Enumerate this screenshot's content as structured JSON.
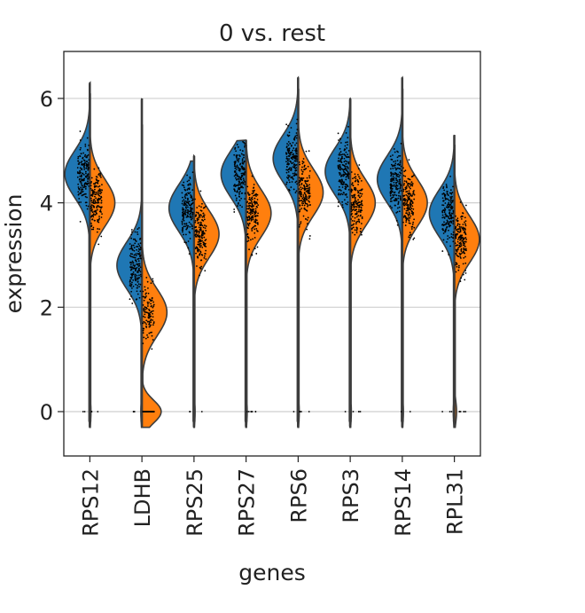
{
  "chart_data": {
    "type": "violin",
    "title": "0 vs. rest",
    "xlabel": "genes",
    "ylabel": "expression",
    "ylim": [
      -0.85,
      6.9
    ],
    "yticks": [
      0,
      2,
      4,
      6
    ],
    "grid": "horizontal",
    "categories": [
      "RPS12",
      "LDHB",
      "RPS25",
      "RPS27",
      "RPS6",
      "RPS3",
      "RPS14",
      "RPL31"
    ],
    "split": true,
    "colors": {
      "group": "#1f77b4",
      "rest": "#ff7f0e",
      "outline": "#3c3c3c",
      "points": "#000000"
    },
    "series": [
      {
        "side": "left",
        "range_max": [
          6.3,
          6.0,
          4.8,
          5.2,
          6.4,
          6.0,
          6.4,
          5.3
        ],
        "modes": [
          4.55,
          2.8,
          3.9,
          4.55,
          4.85,
          4.6,
          4.45,
          3.8
        ],
        "medians": [
          4.5,
          2.6,
          3.9,
          4.5,
          4.8,
          4.6,
          4.4,
          3.8
        ],
        "zero_fraction": [
          0.01,
          0.02,
          0.01,
          0.01,
          0.01,
          0.01,
          0.01,
          0.02
        ]
      },
      {
        "side": "right",
        "range_max": [
          6.1,
          5.5,
          4.9,
          5.1,
          6.2,
          6.0,
          6.2,
          5.1
        ],
        "modes": [
          4.0,
          1.9,
          3.4,
          3.8,
          4.2,
          4.0,
          4.0,
          3.3
        ],
        "medians": [
          3.9,
          1.9,
          3.3,
          3.8,
          4.2,
          4.0,
          3.9,
          3.1
        ],
        "zero_fraction": [
          0.02,
          0.35,
          0.02,
          0.02,
          0.02,
          0.02,
          0.02,
          0.04
        ]
      }
    ]
  }
}
